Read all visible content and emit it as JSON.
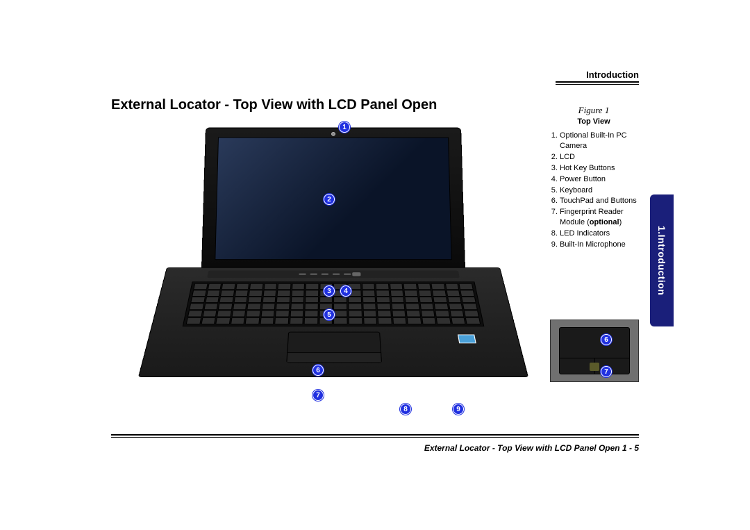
{
  "brand_color": "#1a1f7a",
  "marker_color": "#2030e0",
  "section": "Introduction",
  "title": "External Locator - Top View with LCD Panel Open",
  "thumb_tab": "1.Introduction",
  "figure": {
    "label": "Figure 1",
    "title": "Top View",
    "legend": [
      "Optional Built-In PC Camera",
      "LCD",
      "Hot Key Buttons",
      "Power Button",
      "Keyboard",
      "TouchPad and Buttons",
      "Fingerprint Reader Module (optional)",
      "LED Indicators",
      "Built-In Microphone"
    ]
  },
  "inset_markers": {
    "m6": "6",
    "m7": "7"
  },
  "main_markers": {
    "m1": "1",
    "m2": "2",
    "m3": "3",
    "m4": "4",
    "m5": "5",
    "m6": "6",
    "m7": "7",
    "m8": "8",
    "m9": "9"
  },
  "footer": "External Locator - Top View with LCD Panel Open  1  -  5"
}
